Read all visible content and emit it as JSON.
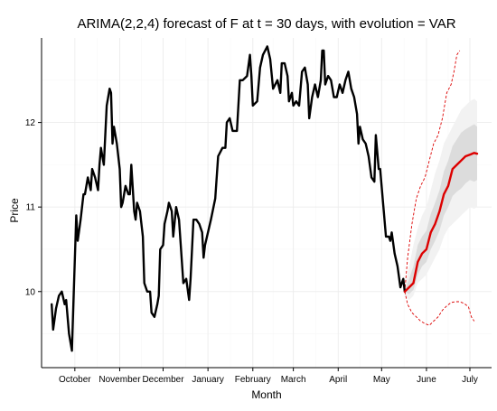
{
  "chart_data": {
    "type": "line",
    "title": "ARIMA(2,2,4) forecast of F at t = 30 days, with evolution = VAR",
    "xlabel": "Month",
    "ylabel": "Price",
    "x_tick_labels": [
      "October",
      "November",
      "December",
      "January",
      "February",
      "March",
      "April",
      "May",
      "June",
      "July"
    ],
    "x_tick_positions": [
      "2013-10-01",
      "2013-11-01",
      "2013-12-01",
      "2014-01-01",
      "2014-02-01",
      "2014-03-01",
      "2014-04-01",
      "2014-05-01",
      "2014-06-01",
      "2014-07-01"
    ],
    "x_range": [
      "2013-09-08",
      "2014-07-16"
    ],
    "y_ticks": [
      10,
      11,
      12
    ],
    "y_range": [
      9.1,
      13.0
    ],
    "grid": true,
    "colors": {
      "history": "#000000",
      "forecast": "#dd0000",
      "band_outer": "#f2f2f2",
      "band_inner": "#dcdcdc",
      "grid_major": "#ececec",
      "grid_minor": "#f7f7f7"
    },
    "series": [
      {
        "role": "history",
        "points": [
          [
            "2013-09-15",
            9.85
          ],
          [
            "2013-09-16",
            9.55
          ],
          [
            "2013-09-18",
            9.8
          ],
          [
            "2013-09-20",
            9.95
          ],
          [
            "2013-09-22",
            10.0
          ],
          [
            "2013-09-24",
            9.85
          ],
          [
            "2013-09-25",
            9.9
          ],
          [
            "2013-09-27",
            9.5
          ],
          [
            "2013-09-29",
            9.3
          ],
          [
            "2013-09-30",
            9.85
          ],
          [
            "2013-10-02",
            10.9
          ],
          [
            "2013-10-03",
            10.6
          ],
          [
            "2013-10-05",
            10.85
          ],
          [
            "2013-10-07",
            11.15
          ],
          [
            "2013-10-08",
            11.15
          ],
          [
            "2013-10-10",
            11.35
          ],
          [
            "2013-10-12",
            11.2
          ],
          [
            "2013-10-13",
            11.45
          ],
          [
            "2013-10-15",
            11.35
          ],
          [
            "2013-10-17",
            11.2
          ],
          [
            "2013-10-18",
            11.5
          ],
          [
            "2013-10-19",
            11.7
          ],
          [
            "2013-10-21",
            11.5
          ],
          [
            "2013-10-23",
            12.2
          ],
          [
            "2013-10-25",
            12.4
          ],
          [
            "2013-10-26",
            12.35
          ],
          [
            "2013-10-27",
            11.75
          ],
          [
            "2013-10-28",
            11.95
          ],
          [
            "2013-10-30",
            11.75
          ],
          [
            "2013-11-01",
            11.45
          ],
          [
            "2013-11-02",
            11.0
          ],
          [
            "2013-11-03",
            11.05
          ],
          [
            "2013-11-05",
            11.25
          ],
          [
            "2013-11-07",
            11.15
          ],
          [
            "2013-11-08",
            11.15
          ],
          [
            "2013-11-09",
            11.5
          ],
          [
            "2013-11-11",
            10.95
          ],
          [
            "2013-11-12",
            10.85
          ],
          [
            "2013-11-13",
            11.05
          ],
          [
            "2013-11-15",
            10.95
          ],
          [
            "2013-11-17",
            10.65
          ],
          [
            "2013-11-18",
            10.1
          ],
          [
            "2013-11-20",
            10.0
          ],
          [
            "2013-11-22",
            10.0
          ],
          [
            "2013-11-23",
            9.75
          ],
          [
            "2013-11-25",
            9.7
          ],
          [
            "2013-11-27",
            9.85
          ],
          [
            "2013-11-28",
            9.95
          ],
          [
            "2013-11-29",
            10.5
          ],
          [
            "2013-12-01",
            10.55
          ],
          [
            "2013-12-02",
            10.8
          ],
          [
            "2013-12-04",
            10.95
          ],
          [
            "2013-12-05",
            11.05
          ],
          [
            "2013-12-07",
            10.95
          ],
          [
            "2013-12-08",
            10.65
          ],
          [
            "2013-12-10",
            11.0
          ],
          [
            "2013-12-12",
            10.85
          ],
          [
            "2013-12-13",
            10.6
          ],
          [
            "2013-12-15",
            10.1
          ],
          [
            "2013-12-17",
            10.15
          ],
          [
            "2013-12-19",
            9.9
          ],
          [
            "2013-12-20",
            10.15
          ],
          [
            "2013-12-22",
            10.85
          ],
          [
            "2013-12-24",
            10.85
          ],
          [
            "2013-12-26",
            10.8
          ],
          [
            "2013-12-28",
            10.7
          ],
          [
            "2013-12-29",
            10.4
          ],
          [
            "2013-12-30",
            10.55
          ],
          [
            "2014-01-03",
            10.85
          ],
          [
            "2014-01-06",
            11.1
          ],
          [
            "2014-01-08",
            11.6
          ],
          [
            "2014-01-11",
            11.7
          ],
          [
            "2014-01-13",
            11.7
          ],
          [
            "2014-01-14",
            12.0
          ],
          [
            "2014-01-16",
            12.05
          ],
          [
            "2014-01-18",
            11.9
          ],
          [
            "2014-01-21",
            11.9
          ],
          [
            "2014-01-23",
            12.5
          ],
          [
            "2014-01-25",
            12.5
          ],
          [
            "2014-01-28",
            12.55
          ],
          [
            "2014-01-30",
            12.8
          ],
          [
            "2014-01-31",
            12.55
          ],
          [
            "2014-02-01",
            12.2
          ],
          [
            "2014-02-04",
            12.25
          ],
          [
            "2014-02-06",
            12.65
          ],
          [
            "2014-02-08",
            12.8
          ],
          [
            "2014-02-11",
            12.9
          ],
          [
            "2014-02-13",
            12.75
          ],
          [
            "2014-02-15",
            12.4
          ],
          [
            "2014-02-18",
            12.5
          ],
          [
            "2014-02-20",
            12.35
          ],
          [
            "2014-02-21",
            12.7
          ],
          [
            "2014-02-23",
            12.7
          ],
          [
            "2014-02-25",
            12.55
          ],
          [
            "2014-02-26",
            12.25
          ],
          [
            "2014-02-28",
            12.35
          ],
          [
            "2014-03-01",
            12.2
          ],
          [
            "2014-03-03",
            12.25
          ],
          [
            "2014-03-05",
            12.2
          ],
          [
            "2014-03-07",
            12.6
          ],
          [
            "2014-03-09",
            12.65
          ],
          [
            "2014-03-11",
            12.45
          ],
          [
            "2014-03-12",
            12.05
          ],
          [
            "2014-03-14",
            12.3
          ],
          [
            "2014-03-16",
            12.45
          ],
          [
            "2014-03-18",
            12.3
          ],
          [
            "2014-03-20",
            12.5
          ],
          [
            "2014-03-21",
            12.85
          ],
          [
            "2014-03-22",
            12.85
          ],
          [
            "2014-03-23",
            12.45
          ],
          [
            "2014-03-25",
            12.55
          ],
          [
            "2014-03-27",
            12.5
          ],
          [
            "2014-03-29",
            12.3
          ],
          [
            "2014-03-31",
            12.3
          ],
          [
            "2014-04-02",
            12.45
          ],
          [
            "2014-04-04",
            12.35
          ],
          [
            "2014-04-06",
            12.5
          ],
          [
            "2014-04-08",
            12.6
          ],
          [
            "2014-04-10",
            12.4
          ],
          [
            "2014-04-12",
            12.3
          ],
          [
            "2014-04-14",
            12.1
          ],
          [
            "2014-04-15",
            11.75
          ],
          [
            "2014-04-16",
            11.95
          ],
          [
            "2014-04-18",
            11.8
          ],
          [
            "2014-04-20",
            11.75
          ],
          [
            "2014-04-22",
            11.6
          ],
          [
            "2014-04-24",
            11.35
          ],
          [
            "2014-04-26",
            11.3
          ],
          [
            "2014-04-27",
            11.85
          ],
          [
            "2014-04-29",
            11.45
          ],
          [
            "2014-04-30",
            11.45
          ],
          [
            "2014-05-02",
            11.05
          ],
          [
            "2014-05-04",
            10.65
          ],
          [
            "2014-05-06",
            10.65
          ],
          [
            "2014-05-07",
            10.6
          ],
          [
            "2014-05-08",
            10.7
          ],
          [
            "2014-05-10",
            10.45
          ],
          [
            "2014-05-12",
            10.3
          ],
          [
            "2014-05-14",
            10.05
          ],
          [
            "2014-05-16",
            10.15
          ],
          [
            "2014-05-17",
            10.0
          ]
        ]
      },
      {
        "role": "forecast",
        "x": [
          "2014-05-17",
          "2014-05-20",
          "2014-05-23",
          "2014-05-26",
          "2014-05-29",
          "2014-06-01",
          "2014-06-04",
          "2014-06-07",
          "2014-06-10",
          "2014-06-13",
          "2014-06-16",
          "2014-06-19",
          "2014-06-22",
          "2014-06-25",
          "2014-06-28",
          "2014-07-01",
          "2014-07-04",
          "2014-07-06"
        ],
        "mean": [
          10.0,
          10.05,
          10.1,
          10.35,
          10.45,
          10.5,
          10.7,
          10.8,
          10.95,
          11.15,
          11.25,
          11.45,
          11.5,
          11.55,
          11.6,
          11.62,
          11.64,
          11.63
        ],
        "band_outer_low": [
          9.95,
          9.9,
          9.95,
          10.1,
          10.15,
          10.2,
          10.3,
          10.4,
          10.5,
          10.65,
          10.75,
          10.8,
          10.85,
          10.9,
          10.95,
          11.0,
          10.98,
          11.0
        ],
        "band_outer_high": [
          10.05,
          10.3,
          10.55,
          10.75,
          10.9,
          11.0,
          11.2,
          11.4,
          11.55,
          11.75,
          11.85,
          11.95,
          12.05,
          12.15,
          12.2,
          12.25,
          12.28,
          12.25
        ],
        "band_inner_low": [
          10.0,
          9.97,
          10.02,
          10.2,
          10.3,
          10.35,
          10.5,
          10.6,
          10.72,
          10.9,
          11.0,
          11.13,
          11.18,
          11.22,
          11.28,
          11.32,
          11.3,
          11.32
        ],
        "band_inner_high": [
          10.02,
          10.15,
          10.3,
          10.55,
          10.65,
          10.72,
          10.92,
          11.05,
          11.2,
          11.42,
          11.55,
          11.72,
          11.8,
          11.88,
          11.92,
          11.95,
          11.98,
          11.95
        ]
      },
      {
        "role": "forecast-upper-dashed",
        "x": [
          "2014-05-17",
          "2014-05-19",
          "2014-05-22",
          "2014-05-25",
          "2014-05-28",
          "2014-05-31",
          "2014-06-03",
          "2014-06-06",
          "2014-06-09",
          "2014-06-12",
          "2014-06-15",
          "2014-06-18",
          "2014-06-20",
          "2014-06-22",
          "2014-06-24"
        ],
        "values": [
          10.0,
          10.4,
          10.8,
          11.1,
          11.25,
          11.35,
          11.55,
          11.75,
          11.85,
          12.05,
          12.35,
          12.45,
          12.6,
          12.8,
          12.85
        ]
      },
      {
        "role": "forecast-lower-dashed",
        "x": [
          "2014-05-17",
          "2014-05-19",
          "2014-05-22",
          "2014-05-25",
          "2014-05-28",
          "2014-05-31",
          "2014-06-03",
          "2014-06-06",
          "2014-06-09",
          "2014-06-12",
          "2014-06-15",
          "2014-06-18",
          "2014-06-21",
          "2014-06-24",
          "2014-06-27",
          "2014-06-30",
          "2014-07-02",
          "2014-07-04"
        ],
        "values": [
          10.0,
          9.85,
          9.75,
          9.7,
          9.65,
          9.62,
          9.6,
          9.65,
          9.7,
          9.78,
          9.83,
          9.87,
          9.88,
          9.88,
          9.86,
          9.82,
          9.7,
          9.65
        ]
      }
    ]
  }
}
